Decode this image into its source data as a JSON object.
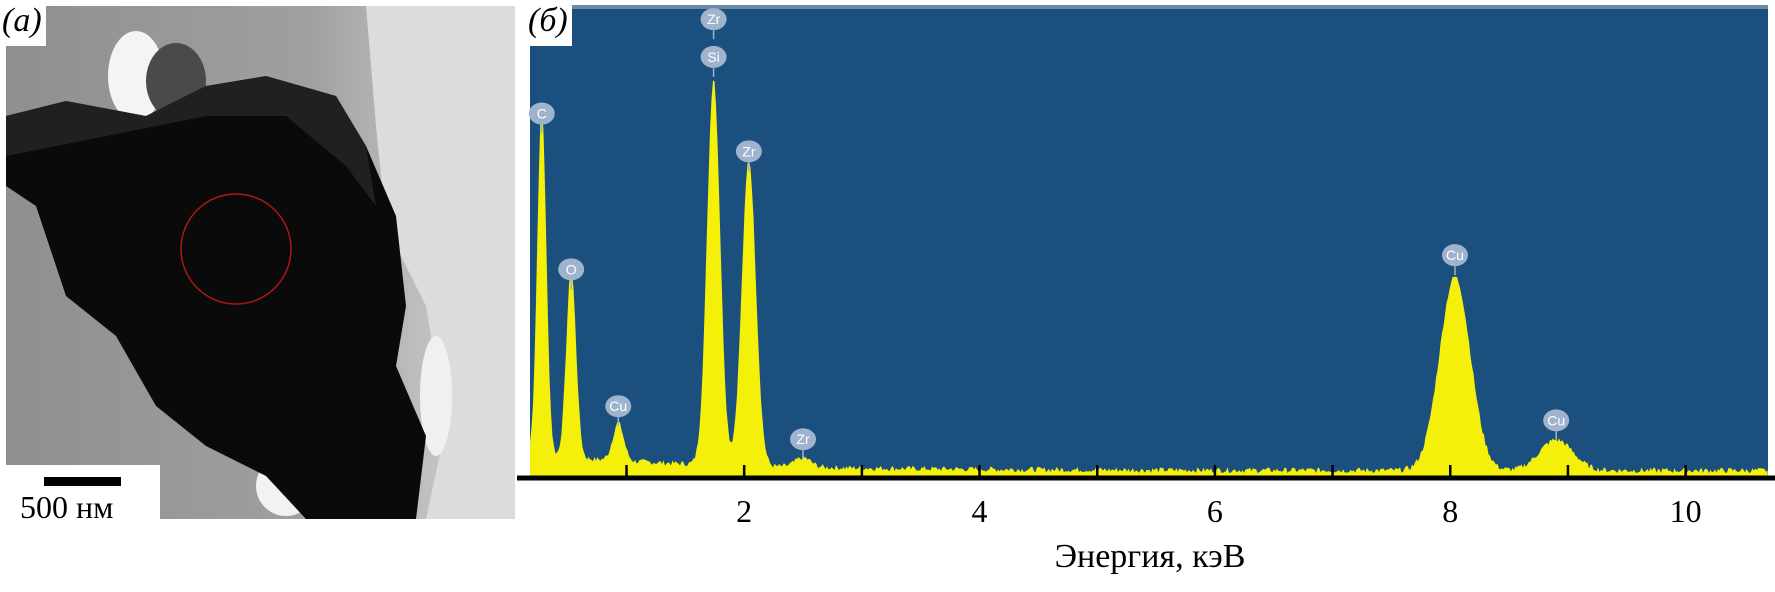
{
  "panel_a": {
    "label": "(a)",
    "scale_bar_text": "500 нм",
    "colors": {
      "background": "#a8a8a8",
      "particle": "#0a0a0a",
      "highlight_circle": "#b01818"
    }
  },
  "panel_b": {
    "label": "(б)"
  },
  "chart_data": {
    "type": "line",
    "title": "",
    "xlabel": "Энергия, кэВ",
    "ylabel": "",
    "xlim": [
      0.18,
      10.7
    ],
    "xticks": [
      2,
      4,
      6,
      8,
      10
    ],
    "minor_ticks": [
      1,
      3,
      5,
      7,
      9
    ],
    "grid": false,
    "colors": {
      "background": "#1b4f7e",
      "spectrum": "#f4f00a",
      "label_badge": "#9fb4cc"
    },
    "peaks": [
      {
        "element": "C",
        "energy": 0.28,
        "intensity": 0.74
      },
      {
        "element": "O",
        "energy": 0.53,
        "intensity": 0.4
      },
      {
        "element": "Cu",
        "energy": 0.93,
        "intensity": 0.08
      },
      {
        "element": "Si",
        "energy": 1.74,
        "intensity": 0.82
      },
      {
        "element": "Zr",
        "energy": 2.04,
        "intensity": 0.65
      },
      {
        "element": "Zr",
        "energy": 2.5,
        "intensity": 0.02
      },
      {
        "element": "Cu",
        "energy": 8.04,
        "intensity": 0.41
      },
      {
        "element": "Cu",
        "energy": 8.9,
        "intensity": 0.065
      }
    ],
    "peak_labels": [
      {
        "text": "Zr",
        "energy": 1.74,
        "level": 0.97
      },
      {
        "text": "Si",
        "energy": 1.74,
        "level": 0.89
      },
      {
        "text": "C",
        "energy": 0.28,
        "level": 0.77
      },
      {
        "text": "Zr",
        "energy": 2.04,
        "level": 0.69
      },
      {
        "text": "O",
        "energy": 0.53,
        "level": 0.44
      },
      {
        "text": "Cu",
        "energy": 0.93,
        "level": 0.15
      },
      {
        "text": "Zr",
        "energy": 2.5,
        "level": 0.08
      },
      {
        "text": "Cu",
        "energy": 8.04,
        "level": 0.47
      },
      {
        "text": "Cu",
        "energy": 8.9,
        "level": 0.12
      }
    ]
  }
}
